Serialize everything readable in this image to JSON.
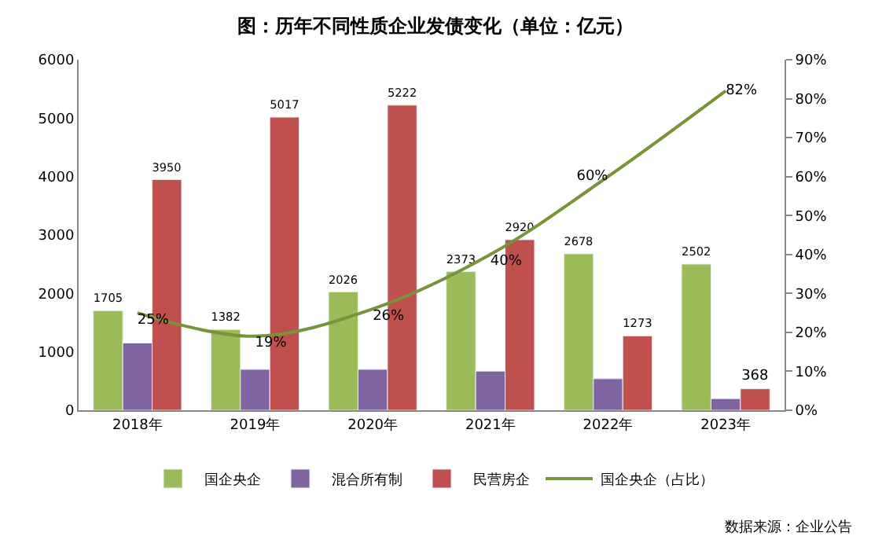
{
  "chart_data": {
    "type": "bar",
    "title": "图：历年不同性质企业发债变化（单位：亿元）",
    "categories": [
      "2018年",
      "2019年",
      "2020年",
      "2021年",
      "2022年",
      "2023年"
    ],
    "series": [
      {
        "name": "国企央企",
        "color": "#9bbb59",
        "values": [
          1705,
          1382,
          2026,
          2373,
          2678,
          2502
        ],
        "value_labels": [
          "1705",
          "1382",
          "2026",
          "2373",
          "2678",
          "2502"
        ]
      },
      {
        "name": "混合所有制",
        "color": "#8064a2",
        "values": [
          1150,
          700,
          700,
          670,
          540,
          200
        ]
      },
      {
        "name": "民营房企",
        "color": "#c0504d",
        "values": [
          3950,
          5017,
          5222,
          2920,
          1273,
          368
        ],
        "value_labels": [
          "3950",
          "5017",
          "5222",
          "2920",
          "1273",
          "368"
        ]
      },
      {
        "name": "国企央企（占比）",
        "type": "line",
        "axis": "y2",
        "color": "#77933c",
        "values": [
          25,
          19,
          26,
          40,
          60,
          82
        ],
        "value_labels": [
          "25%",
          "19%",
          "26%",
          "40%",
          "60%",
          "82%"
        ]
      }
    ],
    "ylim": [
      0,
      6000
    ],
    "yticks": [
      0,
      1000,
      2000,
      3000,
      4000,
      5000,
      6000
    ],
    "y2lim": [
      0,
      90
    ],
    "y2ticks": [
      {
        "value": 0,
        "label": "0%"
      },
      {
        "value": 10,
        "label": "10%"
      },
      {
        "value": 20,
        "label": "20%"
      },
      {
        "value": 30,
        "label": "30%"
      },
      {
        "value": 40,
        "label": "40%"
      },
      {
        "value": 50,
        "label": "50%"
      },
      {
        "value": 60,
        "label": "60%"
      },
      {
        "value": 70,
        "label": "70%"
      },
      {
        "value": 80,
        "label": "80%"
      },
      {
        "value": 90,
        "label": "90%"
      }
    ],
    "legend": "bottom",
    "annotations": [
      "数据来源：企业公告"
    ]
  }
}
